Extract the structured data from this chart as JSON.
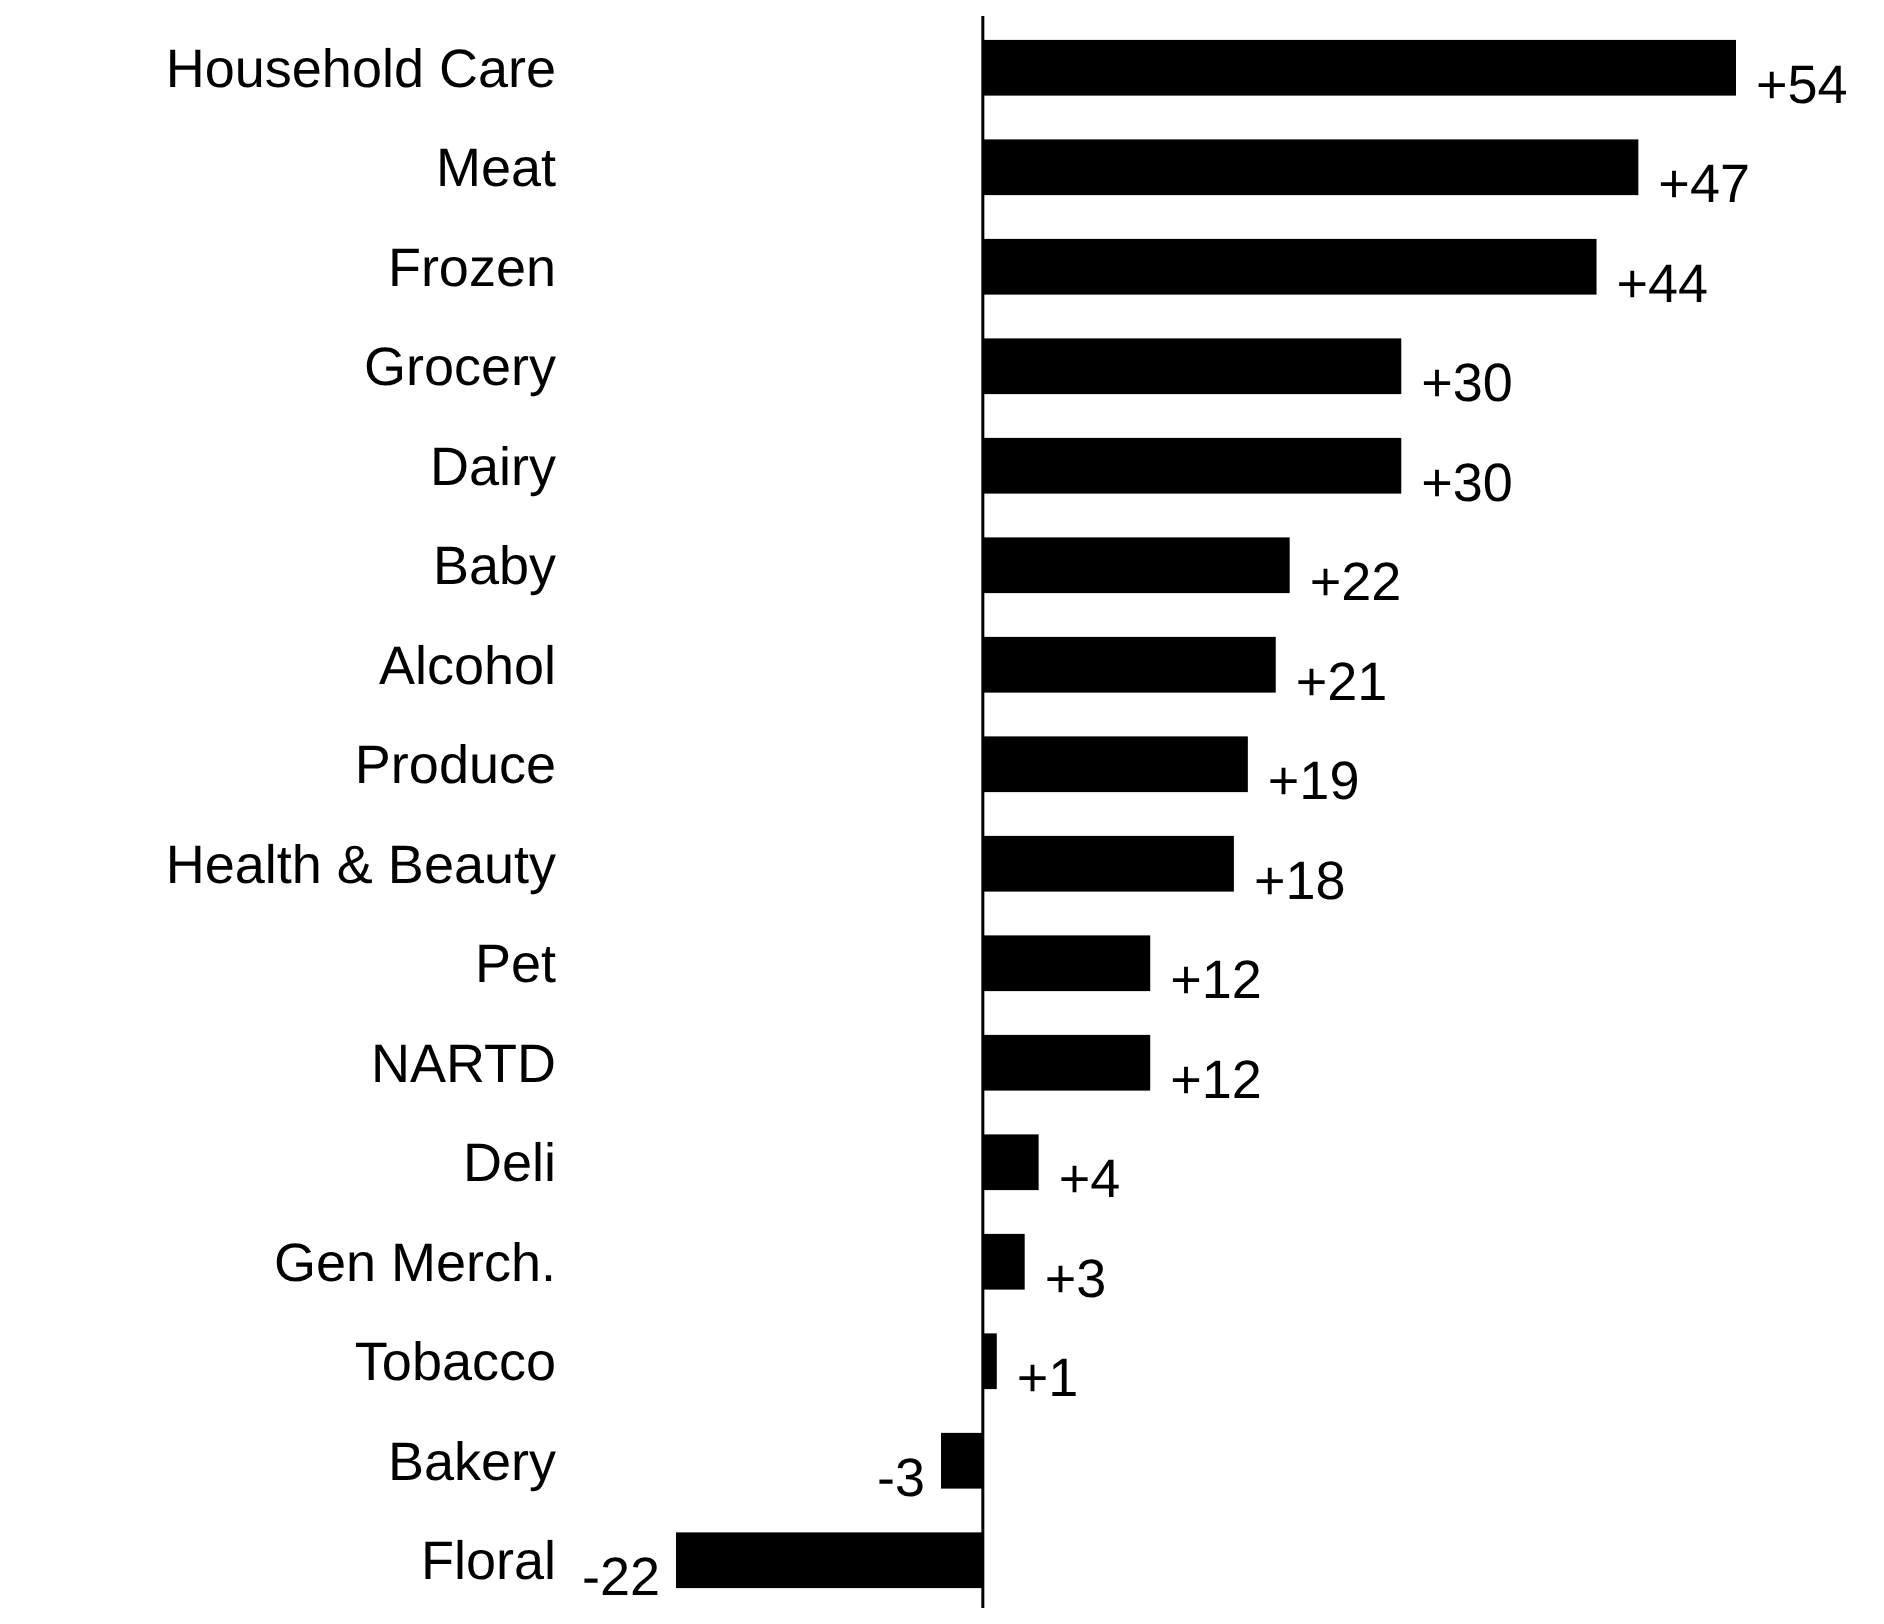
{
  "chart_data": {
    "type": "bar",
    "orientation": "horizontal",
    "categories": [
      "Household Care",
      "Meat",
      "Frozen",
      "Grocery",
      "Dairy",
      "Baby",
      "Alcohol",
      "Produce",
      "Health & Beauty",
      "Pet",
      "NARTD",
      "Deli",
      "Gen Merch.",
      "Tobacco",
      "Bakery",
      "Floral"
    ],
    "values": [
      54,
      47,
      44,
      30,
      30,
      22,
      21,
      19,
      18,
      12,
      12,
      4,
      3,
      1,
      -3,
      -22
    ],
    "value_labels": [
      "+54",
      "+47",
      "+44",
      "+30",
      "+30",
      "+22",
      "+21",
      "+19",
      "+18",
      "+12",
      "+12",
      "+4",
      "+3",
      "+1",
      "-3",
      "-22"
    ],
    "color": "#000000"
  }
}
